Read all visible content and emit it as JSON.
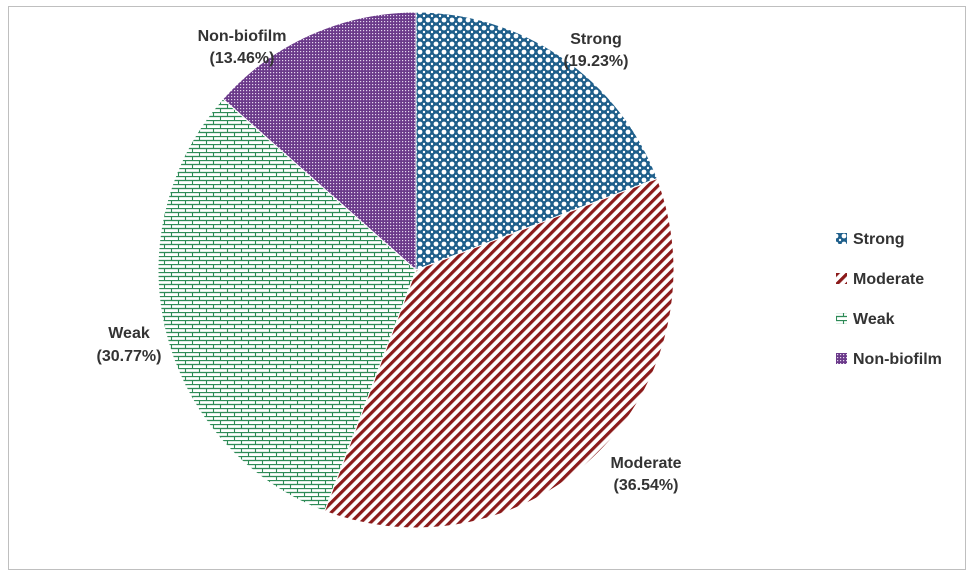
{
  "chart_data": {
    "type": "pie",
    "title": "",
    "categories": [
      "Strong",
      "Moderate",
      "Weak",
      "Non-biofilm"
    ],
    "values": [
      19.23,
      36.54,
      30.77,
      13.46
    ],
    "unit": "%",
    "data_labels": [
      {
        "name": "Strong",
        "value": "(19.23%)"
      },
      {
        "name": "Moderate",
        "value": "(36.54%)"
      },
      {
        "name": "Weak",
        "value": "(30.77%)"
      },
      {
        "name": "Non-biofilm",
        "value": "(13.46%)"
      }
    ],
    "legend": {
      "position": "right",
      "entries": [
        "Strong",
        "Moderate",
        "Weak",
        "Non-biofilm"
      ]
    },
    "colors": {
      "Strong": "#1f5f8b",
      "Moderate": "#8b1a1a",
      "Weak": "#2e8b57",
      "Non-biofilm": "#6b3a8a"
    },
    "patterns": {
      "Strong": "dotted-grid",
      "Moderate": "diagonal-stripes",
      "Weak": "horizontal-bricks",
      "Non-biofilm": "fine-dots"
    },
    "start_angle": "12 o'clock, clockwise"
  }
}
